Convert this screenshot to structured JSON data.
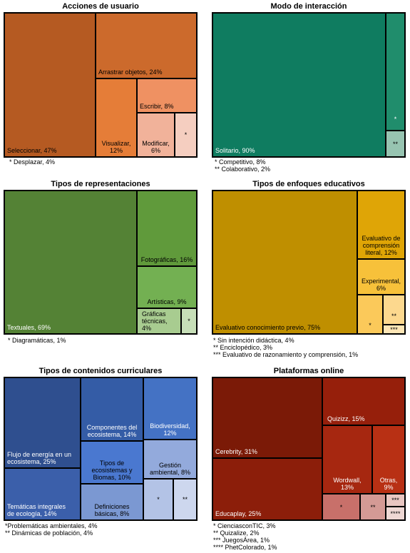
{
  "chart_data": [
    {
      "type": "treemap",
      "title": "Acciones de usuario",
      "cells": [
        {
          "label": "Seleccionar, 47%",
          "value": 47,
          "color": "#b55a22"
        },
        {
          "label": "Arrastrar objetos, 24%",
          "value": 24,
          "color": "#cc6a2c"
        },
        {
          "label": "Visualizar,\n12%",
          "value": 12,
          "color": "#e57d38"
        },
        {
          "label": "Escribir, 8%",
          "value": 8,
          "color": "#ef9162"
        },
        {
          "label": "Modificar,\n6%",
          "value": 6,
          "color": "#f1b29a"
        },
        {
          "label": "*",
          "value": 4,
          "color": "#f5cec0"
        }
      ],
      "notes": [
        "* Desplazar, 4%"
      ]
    },
    {
      "type": "treemap",
      "title": "Modo de interacción",
      "cells": [
        {
          "label": "Solitario, 90%",
          "value": 90,
          "color": "#0f7c60"
        },
        {
          "label": "*",
          "value": 8,
          "color": "#208d6c"
        },
        {
          "label": "**",
          "value": 2,
          "color": "#97c4b1"
        }
      ],
      "notes": [
        "* Competitivo, 8%",
        "** Colaborativo, 2%"
      ]
    },
    {
      "type": "treemap",
      "title": "Tipos de representaciones",
      "cells": [
        {
          "label": "Textuales, 69%",
          "value": 69,
          "color": "#548235"
        },
        {
          "label": "Fotográficas, 16%",
          "value": 16,
          "color": "#609a3b"
        },
        {
          "label": "Artísticas, 9%",
          "value": 9,
          "color": "#73b052"
        },
        {
          "label": "Gráficas\ntécnicas,\n4%",
          "value": 4,
          "color": "#a8cc90"
        },
        {
          "label": "*",
          "value": 1,
          "color": "#c7dfb8"
        }
      ],
      "notes": [
        "* Diagramáticas, 1%"
      ]
    },
    {
      "type": "treemap",
      "title": "Tipos de enfoques educativos",
      "cells": [
        {
          "label": "Evaluativo conocimiento previo, 75%",
          "value": 75,
          "color": "#bf8f00"
        },
        {
          "label": "Evaluativo de\ncomprensión\nliteral, 12%",
          "value": 12,
          "color": "#dfa506"
        },
        {
          "label": "Experimental,\n6%",
          "value": 6,
          "color": "#f7c13a"
        },
        {
          "label": "*",
          "value": 4,
          "color": "#fbc95a"
        },
        {
          "label": "**",
          "value": 3,
          "color": "#fcd88e"
        },
        {
          "label": "***",
          "value": 1,
          "color": "#fde6b6"
        }
      ],
      "notes": [
        "* Sin intención didáctica, 4%",
        "** Enciclopédico, 3%",
        "*** Evaluativo de razonamiento y comprensión, 1%"
      ]
    },
    {
      "type": "treemap",
      "title": "Tipos de contenidos curriculares",
      "cells": [
        {
          "label": "Flujo de energía en un\necosistema, 25%",
          "value": 25,
          "color": "#2f4f8f"
        },
        {
          "label": "Temáticas integrales\nde ecología, 14%",
          "value": 14,
          "color": "#3b5faa"
        },
        {
          "label": "Componentes del\necosistema, 14%",
          "value": 14,
          "color": "#345ca6"
        },
        {
          "label": "Tipos de\necosistemas y\nBiomas, 10%",
          "value": 10,
          "color": "#4a78d0"
        },
        {
          "label": "Definiciones\nbásicas, 8%",
          "value": 8,
          "color": "#7b98d2"
        },
        {
          "label": "Biodiversidad,\n12%",
          "value": 12,
          "color": "#4472c4"
        },
        {
          "label": "Gestión\nambiental, 8%",
          "value": 8,
          "color": "#93aadc"
        },
        {
          "label": "*",
          "value": 4,
          "color": "#b3c3e6"
        },
        {
          "label": "**",
          "value": 4,
          "color": "#cdd7ee"
        }
      ],
      "notes": [
        "*Problemáticas ambientales, 4%",
        "** Dinámicas de población, 4%"
      ]
    },
    {
      "type": "treemap",
      "title": "Plataformas online",
      "cells": [
        {
          "label": "Cerebrity, 31%",
          "value": 31,
          "color": "#7b1a07"
        },
        {
          "label": "Educaplay, 25%",
          "value": 25,
          "color": "#8c1e0a"
        },
        {
          "label": "Quizizz, 15%",
          "value": 15,
          "color": "#961f0b"
        },
        {
          "label": "Wordwall,\n13%",
          "value": 13,
          "color": "#a62710"
        },
        {
          "label": "Otras,\n9%",
          "value": 9,
          "color": "#b83014"
        },
        {
          "label": "*",
          "value": 3,
          "color": "#c8706a"
        },
        {
          "label": "**",
          "value": 2,
          "color": "#d49a95"
        },
        {
          "label": "***",
          "value": 1,
          "color": "#e8c6c1"
        },
        {
          "label": "****",
          "value": 1,
          "color": "#eed8d4"
        }
      ],
      "notes": [
        "* CienciasconTIC, 3%",
        "** Quizalize, 2%",
        "*** JuegosÁrea, 1%",
        "**** PhetColorado, 1%"
      ]
    }
  ]
}
